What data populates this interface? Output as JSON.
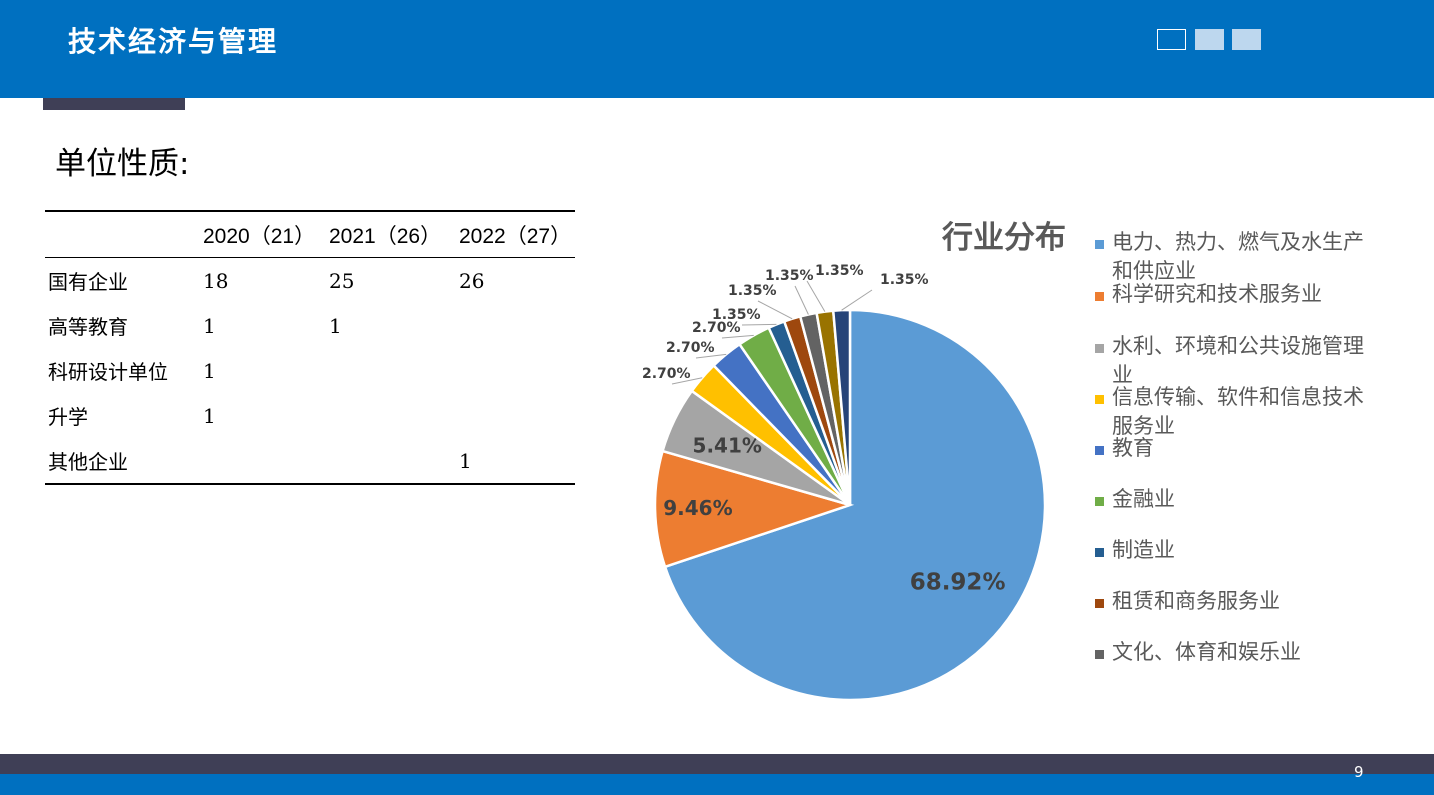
{
  "header": {
    "title": "技术经济与管理"
  },
  "section_heading": "单位性质:",
  "table": {
    "headers": [
      "",
      "2020（21）",
      "2021（26）",
      "2022（27）"
    ],
    "rows": [
      [
        "国有企业",
        "18",
        "25",
        "26"
      ],
      [
        "高等教育",
        "1",
        "1",
        ""
      ],
      [
        "科研设计单位",
        "1",
        "",
        ""
      ],
      [
        "升学",
        "1",
        "",
        ""
      ],
      [
        "其他企业",
        "",
        "",
        "1"
      ]
    ]
  },
  "chart_data": {
    "type": "pie",
    "title": "行业分布",
    "slices": [
      {
        "label": "电力、热力、燃气及水生产和供应业",
        "value": 68.92,
        "display": "68.92%",
        "color": "#5B9BD5"
      },
      {
        "label": "科学研究和技术服务业",
        "value": 9.46,
        "display": "9.46%",
        "color": "#ED7D31"
      },
      {
        "label": "水利、环境和公共设施管理业",
        "value": 5.41,
        "display": "5.41%",
        "color": "#A5A5A5"
      },
      {
        "label": "信息传输、软件和信息技术服务业",
        "value": 2.7,
        "display": "2.70%",
        "color": "#FFC000"
      },
      {
        "label": "教育",
        "value": 2.7,
        "display": "2.70%",
        "color": "#4472C4"
      },
      {
        "label": "金融业",
        "value": 2.7,
        "display": "2.70%",
        "color": "#70AD47"
      },
      {
        "label": "制造业",
        "value": 1.35,
        "display": "1.35%",
        "color": "#255E91"
      },
      {
        "label": "租赁和商务服务业",
        "value": 1.35,
        "display": "1.35%",
        "color": "#9E480E"
      },
      {
        "label": "文化、体育和娱乐业",
        "value": 1.35,
        "display": "1.35%",
        "color": "#636363"
      },
      {
        "label": "",
        "value": 1.35,
        "display": "1.35%",
        "color": "#997300"
      },
      {
        "label": "",
        "value": 1.35,
        "display": "1.35%",
        "color": "#264478"
      }
    ],
    "legend_position": "right"
  },
  "footer": {
    "page_number": "9"
  }
}
